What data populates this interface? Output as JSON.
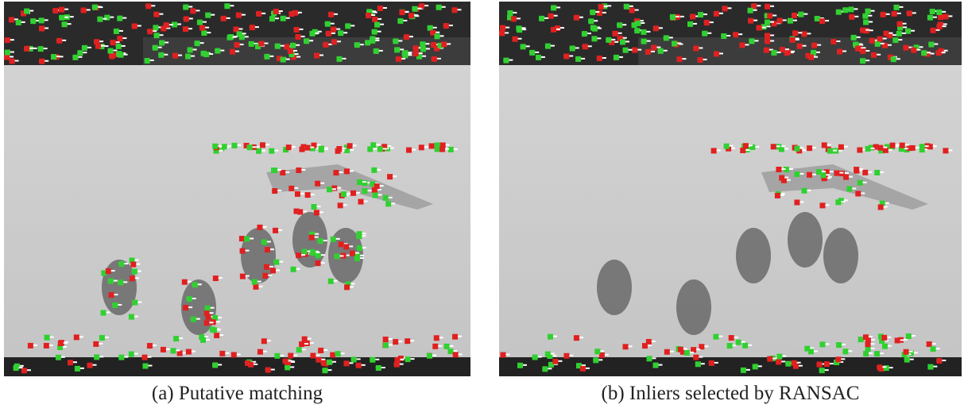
{
  "figures": [
    {
      "caption": "(a) Putative matching"
    },
    {
      "caption": "(b) Inliers selected by RANSAC"
    }
  ]
}
